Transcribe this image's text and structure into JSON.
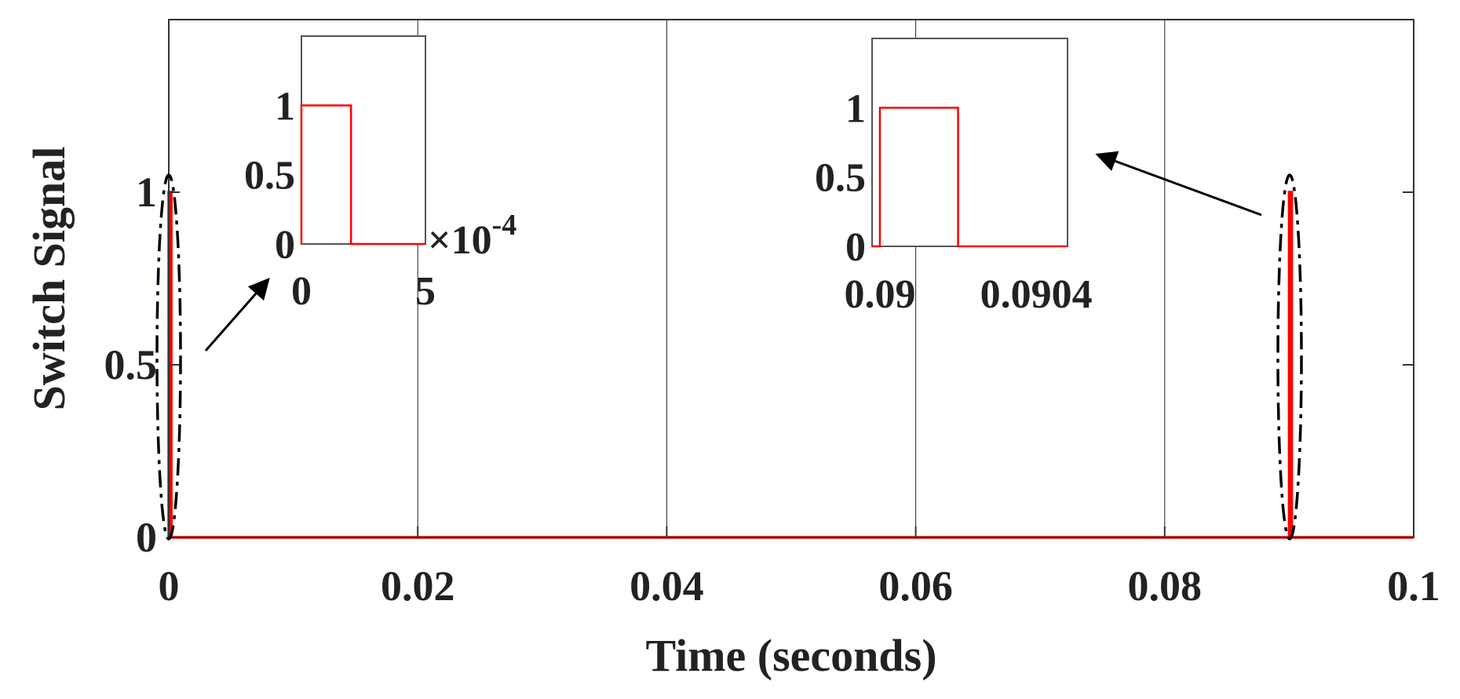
{
  "chart_data": {
    "type": "line",
    "xlabel": "Time (seconds)",
    "ylabel": "Switch Signal",
    "xlim": [
      0,
      0.1
    ],
    "ylim": [
      0,
      1.5
    ],
    "xticks": [
      "0",
      "0.02",
      "0.04",
      "0.06",
      "0.08",
      "0.1"
    ],
    "yticks": [
      "0",
      "0.5",
      "1"
    ],
    "grid": "x",
    "colors": {
      "signal": "#ff0000",
      "axes": "#333333",
      "gridline": "#222222",
      "annotation": "#000000"
    },
    "series": [
      {
        "x": [
          0,
          0,
          0.0002,
          0.0002,
          0.09,
          0.09,
          0.0902,
          0.0902,
          0.1
        ],
        "y": [
          0,
          1,
          1,
          0,
          0,
          1,
          1,
          0,
          0
        ]
      }
    ],
    "insets": [
      {
        "xlim": [
          0,
          0.0005
        ],
        "ylim": [
          0,
          1.5
        ],
        "xticks": [
          "0",
          "5"
        ],
        "yticks": [
          "0",
          "0.5",
          "1"
        ],
        "x_exponent_label": "×10",
        "x_exponent": "-4",
        "x": [
          0,
          0,
          0.0002,
          0.0002,
          0.0005
        ],
        "y": [
          0,
          1,
          1,
          0,
          0
        ]
      },
      {
        "xlim": [
          0.08998,
          0.09048
        ],
        "ylim": [
          0,
          1.5
        ],
        "xticks": [
          "0.09",
          "0.0904"
        ],
        "yticks": [
          "0",
          "0.5",
          "1"
        ],
        "x": [
          0.08998,
          0.09,
          0.09,
          0.0902,
          0.0902,
          0.09048
        ],
        "y": [
          0,
          0,
          1,
          1,
          0,
          0
        ]
      }
    ],
    "annotations": [
      "dashed ellipse around pulse at 0 s",
      "dashed ellipse around pulse at 0.09 s",
      "arrow to inset 1",
      "arrow to inset 2"
    ]
  }
}
